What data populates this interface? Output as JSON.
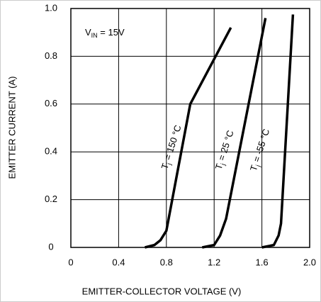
{
  "chart_data": {
    "type": "line",
    "xlabel": "EMITTER-COLLECTOR VOLTAGE (V)",
    "ylabel": "EMITTER CURRENT (A)",
    "annotation": {
      "main": "V",
      "sub": "IN",
      "rest": " = 15V"
    },
    "xlim": [
      0,
      2
    ],
    "ylim": [
      0,
      1
    ],
    "xticks": [
      0,
      0.4,
      0.8,
      1.2,
      1.6,
      {
        "value": 2,
        "label": "2.0"
      }
    ],
    "yticks": [
      0,
      0.2,
      0.4,
      0.6,
      0.8,
      {
        "value": 1,
        "label": "1.0"
      }
    ],
    "grid": true,
    "series": [
      {
        "label": {
          "main": "T",
          "sub": "j",
          "rest": " = 150 °C"
        },
        "color": "#000000",
        "x": [
          0.62,
          0.7,
          0.75,
          0.8,
          1.0,
          1.34
        ],
        "values": [
          0,
          0.01,
          0.03,
          0.07,
          0.6,
          0.92
        ]
      },
      {
        "label": {
          "main": "T",
          "sub": "j",
          "rest": " = 25 °C"
        },
        "color": "#000000",
        "x": [
          1.1,
          1.2,
          1.25,
          1.3,
          1.63
        ],
        "values": [
          0,
          0.01,
          0.05,
          0.12,
          0.96
        ]
      },
      {
        "label": {
          "main": "T",
          "sub": "j",
          "rest": " = -55 °C"
        },
        "color": "#000000",
        "x": [
          1.6,
          1.7,
          1.74,
          1.76,
          1.86
        ],
        "values": [
          0,
          0.01,
          0.05,
          0.1,
          0.975
        ]
      }
    ]
  }
}
